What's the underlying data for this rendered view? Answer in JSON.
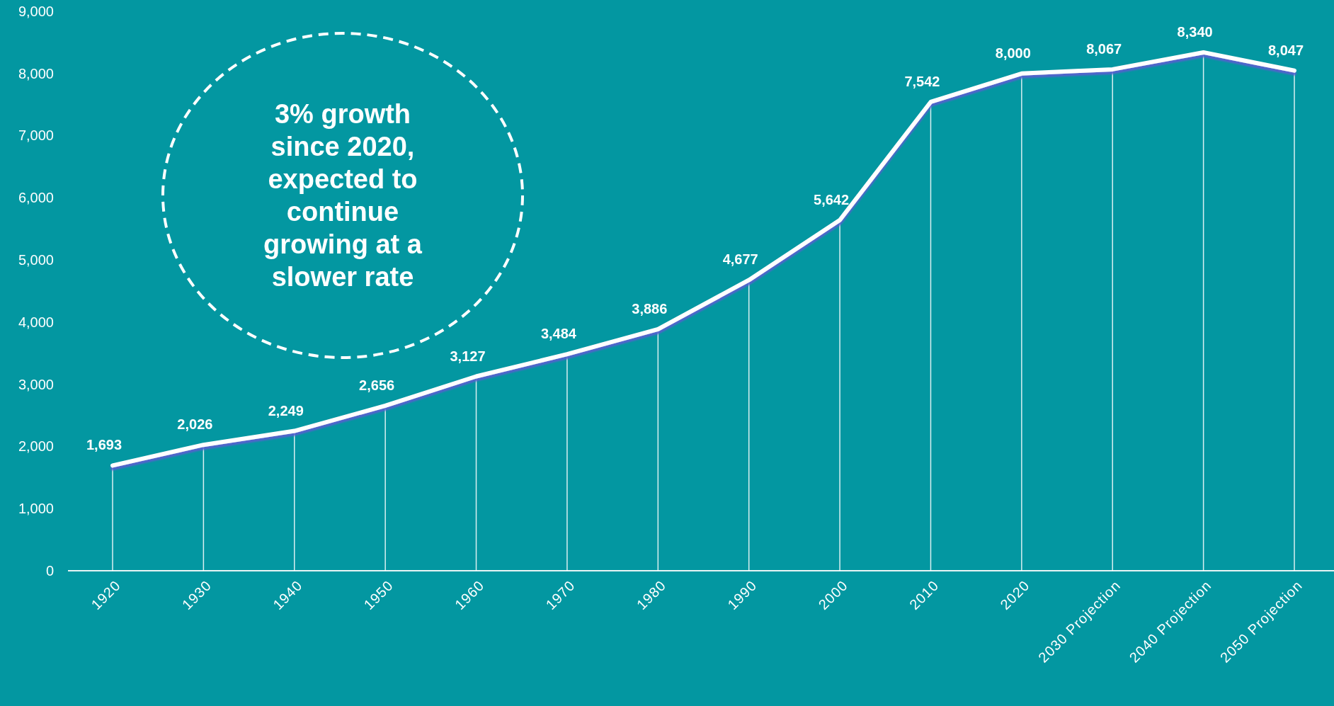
{
  "chart_data": {
    "type": "line",
    "categories": [
      "1920",
      "1930",
      "1940",
      "1950",
      "1960",
      "1970",
      "1980",
      "1990",
      "2000",
      "2010",
      "2020",
      "2030 Projection",
      "2040 Projection",
      "2050 Projection"
    ],
    "series": [
      {
        "color": "#ffffff",
        "values": [
          1693,
          2026,
          2249,
          2656,
          3127,
          3484,
          3886,
          4677,
          5642,
          7542,
          8000,
          8067,
          8340,
          8047
        ],
        "value_labels": [
          "1,693",
          "2,026",
          "2,249",
          "2,656",
          "3,127",
          "3,484",
          "3,886",
          "4,677",
          "5,642",
          "7,542",
          "8,000",
          "8,067",
          "8,340",
          "8,047"
        ]
      }
    ],
    "ylim": [
      0,
      9000
    ],
    "yticks": [
      {
        "value": 0,
        "label": "0"
      },
      {
        "value": 1000,
        "label": "1,000"
      },
      {
        "value": 2000,
        "label": "2,000"
      },
      {
        "value": 3000,
        "label": "3,000"
      },
      {
        "value": 4000,
        "label": "4,000"
      },
      {
        "value": 5000,
        "label": "5,000"
      },
      {
        "value": 6000,
        "label": "6,000"
      },
      {
        "value": 7000,
        "label": "7,000"
      },
      {
        "value": 8000,
        "label": "8,000"
      },
      {
        "value": 9000,
        "label": "9,000"
      }
    ],
    "grid": "x",
    "marker": "none",
    "line_style": "solid",
    "annotations": [
      "3% growth since 2020, expected to continue growing at a slower rate"
    ]
  }
}
